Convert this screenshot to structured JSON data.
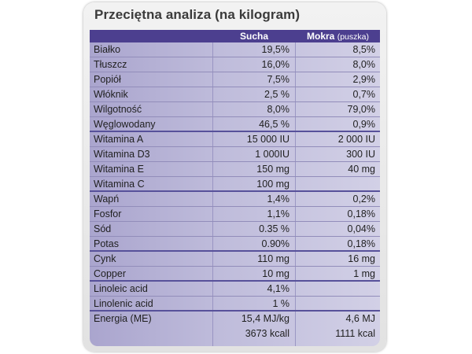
{
  "title": "Przeciętna analiza (na kilogram)",
  "columns": {
    "dry": "Sucha",
    "wet": "Mokra",
    "wet_note": "(puszka)"
  },
  "rows": [
    {
      "name": "Białko",
      "dry": "19,5%",
      "wet": "8,5%"
    },
    {
      "name": "Tłuszcz",
      "dry": "16,0%",
      "wet": "8,0%"
    },
    {
      "name": "Popiół",
      "dry": "7,5%",
      "wet": "2,9%"
    },
    {
      "name": "Włóknik",
      "dry": "2,5 %",
      "wet": "0,7%"
    },
    {
      "name": "Wilgotność",
      "dry": "8,0%",
      "wet": "79,0%"
    },
    {
      "name": "Węglowodany",
      "dry": "46,5 %",
      "wet": "0,9%"
    },
    {
      "name": "Witamina A",
      "dry": "15 000 IU",
      "wet": "2 000 IU"
    },
    {
      "name": "Witamina D3",
      "dry": "1 000IU",
      "wet": "300 IU"
    },
    {
      "name": "Witamina E",
      "dry": "150 mg",
      "wet": "40 mg"
    },
    {
      "name": "Witamina C",
      "dry": "100 mg",
      "wet": ""
    },
    {
      "name": "Wapń",
      "dry": "1,4%",
      "wet": "0,2%"
    },
    {
      "name": "Fosfor",
      "dry": "1,1%",
      "wet": "0,18%"
    },
    {
      "name": "Sód",
      "dry": "0.35 %",
      "wet": "0,04%"
    },
    {
      "name": "Potas",
      "dry": "0.90%",
      "wet": "0,18%"
    },
    {
      "name": "Cynk",
      "dry": "110 mg",
      "wet": "16 mg"
    },
    {
      "name": "Copper",
      "dry": "10 mg",
      "wet": "1 mg"
    },
    {
      "name": "Linoleic acid",
      "dry": "4,1%",
      "wet": ""
    },
    {
      "name": "Linolenic acid",
      "dry": "1 %",
      "wet": ""
    },
    {
      "name": "Energia (ME)",
      "dry": "15,4 MJ/kg",
      "wet": "4,6 MJ"
    },
    {
      "name": "",
      "dry": "3673 kcall",
      "wet": "1111 kcal"
    }
  ],
  "colors": {
    "header_bg": "#4c3f8f",
    "row_bg": "#bfbcdb",
    "panel_bg": "#e9e9e9"
  }
}
